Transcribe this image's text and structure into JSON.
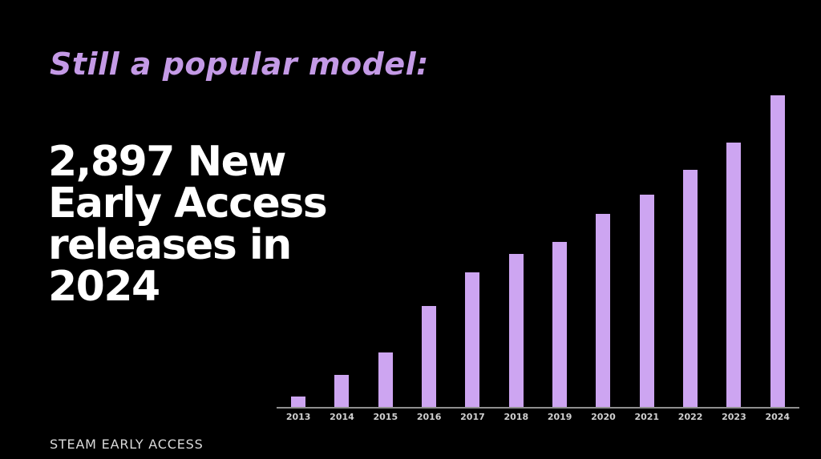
{
  "slide": {
    "kicker": "Still a popular model:",
    "headline_lines": [
      "2,897 New",
      "Early Access",
      "releases in",
      "2024"
    ],
    "footer": "STEAM EARLY ACCESS"
  },
  "colors": {
    "background": "#000000",
    "kicker": "#c49ae6",
    "headline": "#ffffff",
    "bar": "#cda5f1",
    "axis": "#8f8f8f",
    "tick_label": "#d0d0d0",
    "footer": "#dadada"
  },
  "chart_data": {
    "type": "bar",
    "title": "",
    "xlabel": "",
    "ylabel": "",
    "categories": [
      "2013",
      "2014",
      "2015",
      "2016",
      "2017",
      "2018",
      "2019",
      "2020",
      "2021",
      "2022",
      "2023",
      "2024"
    ],
    "values": [
      95,
      300,
      505,
      940,
      1250,
      1425,
      1535,
      1795,
      1975,
      2205,
      2460,
      2897
    ],
    "labeled_value": {
      "year": "2024",
      "value": 2897
    },
    "ylim": [
      0,
      2897
    ],
    "grid": false,
    "legend": false,
    "bar_color": "#cda5f1",
    "axis_line": "x-only"
  }
}
